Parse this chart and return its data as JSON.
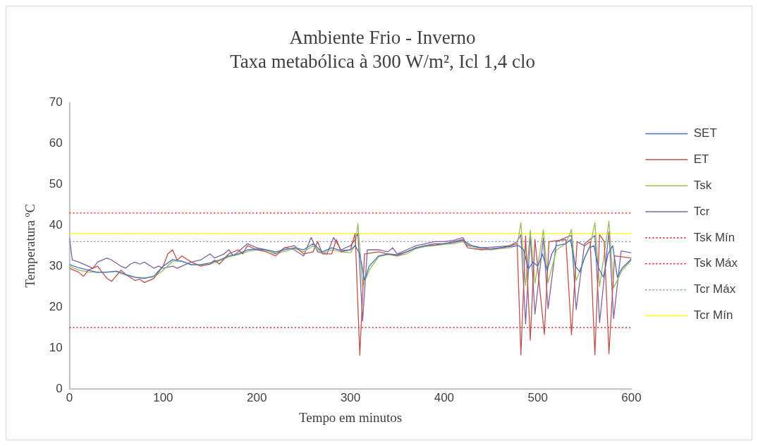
{
  "chart_data": {
    "type": "line",
    "title": "Ambiente Frio - Inverno",
    "subtitle": "Taxa metabólica à 300 W/m², Icl 1,4 clo",
    "xlabel": "Tempo em minutos",
    "ylabel": "Temperatura ºC",
    "xlim": [
      0,
      600
    ],
    "xticks": [
      0,
      100,
      200,
      300,
      400,
      500,
      600
    ],
    "ylim": [
      0,
      70
    ],
    "yticks": [
      0,
      10,
      20,
      30,
      40,
      50,
      60,
      70
    ],
    "legend": "right",
    "marker": "none",
    "series": [
      {
        "name": "SET",
        "color": "#4472c4",
        "line_style": "solid",
        "x": [
          0,
          10,
          20,
          30,
          40,
          50,
          60,
          70,
          80,
          90,
          100,
          110,
          120,
          130,
          140,
          150,
          160,
          170,
          180,
          190,
          200,
          210,
          220,
          230,
          240,
          250,
          260,
          270,
          280,
          290,
          300,
          305,
          310,
          315,
          320,
          330,
          340,
          350,
          360,
          370,
          380,
          390,
          400,
          410,
          420,
          430,
          440,
          450,
          460,
          470,
          480,
          485,
          490,
          495,
          500,
          505,
          510,
          515,
          520,
          530,
          535,
          540,
          545,
          550,
          555,
          560,
          565,
          570,
          575,
          580,
          585,
          590,
          600
        ],
        "values": [
          30.4,
          29.6,
          29,
          28.5,
          28.5,
          28.8,
          28,
          27.3,
          27,
          27.6,
          30,
          31.6,
          31.2,
          30.3,
          30.4,
          30.8,
          31.5,
          32.5,
          33,
          34,
          34.2,
          34,
          33.5,
          34,
          34.5,
          34,
          35.5,
          33.5,
          34.5,
          33.8,
          34,
          35,
          33,
          26.5,
          30,
          32.5,
          33,
          32.8,
          33.5,
          34.5,
          35,
          35.2,
          35.5,
          35.8,
          36.3,
          35,
          34.5,
          34.2,
          34.5,
          34.8,
          35,
          34,
          29.3,
          31,
          30,
          33,
          29,
          33,
          35,
          35.5,
          36.5,
          30,
          28.6,
          32,
          34.5,
          35,
          29.5,
          27.3,
          33,
          35,
          27.3,
          29.5,
          31.8
        ]
      },
      {
        "name": "ET",
        "color": "#c0504d",
        "line_style": "solid",
        "x": [
          0,
          10,
          15,
          20,
          30,
          40,
          45,
          55,
          60,
          70,
          75,
          80,
          90,
          100,
          105,
          110,
          115,
          120,
          130,
          140,
          150,
          155,
          160,
          170,
          180,
          185,
          190,
          200,
          210,
          220,
          230,
          240,
          250,
          260,
          265,
          270,
          280,
          285,
          290,
          300,
          305,
          310,
          315,
          330,
          340,
          350,
          360,
          370,
          380,
          390,
          400,
          410,
          420,
          425,
          440,
          460,
          470,
          478,
          482,
          487,
          492,
          497,
          507,
          512,
          530,
          536,
          542,
          550,
          556,
          561,
          566,
          571,
          576,
          582,
          600
        ],
        "values": [
          29.5,
          28.5,
          27.5,
          29,
          30,
          27,
          26.3,
          29,
          28,
          26.5,
          26.8,
          26,
          27,
          30,
          33,
          34,
          31.5,
          32.5,
          31,
          30,
          30.5,
          31.5,
          30.5,
          33,
          34,
          33,
          35,
          34,
          33.5,
          32.5,
          34.5,
          35,
          33,
          33.5,
          36,
          33,
          33,
          36.5,
          33.5,
          34,
          38,
          8.2,
          33,
          33.5,
          33,
          32.5,
          33.5,
          34.5,
          35,
          35.5,
          35.5,
          36,
          36.5,
          34.5,
          34,
          34.5,
          35,
          35.5,
          8.3,
          37.4,
          11.9,
          36.5,
          13.3,
          36,
          36.5,
          13.2,
          36,
          35,
          36,
          8.3,
          37.7,
          36,
          8.6,
          32.5,
          32
        ]
      },
      {
        "name": "Tsk",
        "color": "#9bbb59",
        "line_style": "solid",
        "x": [
          0,
          10,
          20,
          30,
          40,
          50,
          60,
          70,
          80,
          90,
          100,
          110,
          120,
          130,
          140,
          150,
          160,
          170,
          180,
          190,
          200,
          210,
          220,
          230,
          240,
          250,
          260,
          270,
          280,
          290,
          300,
          305,
          308,
          313,
          320,
          330,
          340,
          350,
          360,
          370,
          380,
          390,
          400,
          410,
          420,
          430,
          440,
          450,
          460,
          470,
          478,
          482,
          487,
          492,
          497,
          506,
          511,
          520,
          530,
          536,
          541,
          550,
          556,
          561,
          566,
          576,
          581,
          590,
          600
        ],
        "values": [
          30,
          29,
          28.6,
          28.5,
          28.6,
          28.7,
          27.8,
          27.3,
          27.2,
          27.3,
          29,
          31.2,
          31.2,
          30.4,
          30.3,
          30.5,
          31.3,
          32.3,
          32.8,
          33.6,
          34,
          33.8,
          33.2,
          33.6,
          34.3,
          33.5,
          35,
          33.2,
          34,
          33.5,
          33.3,
          35,
          40.4,
          25,
          29,
          32.3,
          32.8,
          32.5,
          33,
          34.3,
          34.8,
          35,
          35.3,
          35.5,
          36,
          34.8,
          34.2,
          34,
          34.3,
          34.5,
          35,
          40.6,
          25.2,
          38.8,
          25.8,
          38.9,
          26,
          34,
          35.5,
          39,
          26.5,
          32,
          35,
          40.6,
          25,
          41,
          24.7,
          29,
          31.5
        ]
      },
      {
        "name": "Tcr",
        "color": "#8064a2",
        "line_style": "solid",
        "x": [
          0,
          3,
          10,
          20,
          25,
          30,
          40,
          45,
          55,
          60,
          65,
          70,
          75,
          80,
          90,
          95,
          100,
          110,
          115,
          120,
          130,
          140,
          150,
          155,
          165,
          170,
          175,
          180,
          190,
          200,
          210,
          220,
          230,
          240,
          250,
          258,
          265,
          275,
          282,
          290,
          300,
          305,
          308,
          313,
          318,
          330,
          340,
          345,
          350,
          360,
          370,
          380,
          390,
          400,
          410,
          420,
          425,
          440,
          460,
          470,
          478,
          482,
          487,
          492,
          497,
          506,
          511,
          520,
          530,
          536,
          541,
          550,
          561,
          566,
          576,
          581,
          589,
          600
        ],
        "values": [
          37,
          31.5,
          31,
          30,
          29.5,
          31,
          32,
          31.5,
          30,
          29.5,
          30.5,
          31,
          30.5,
          31,
          29.5,
          30,
          29.5,
          30,
          29.5,
          30,
          31,
          31.5,
          33,
          32,
          33,
          34,
          32.5,
          33.5,
          35.5,
          34.5,
          34,
          33,
          34.5,
          34,
          32.5,
          37,
          33.5,
          33,
          37,
          34,
          35,
          36.5,
          38,
          16.6,
          34,
          34,
          33.5,
          34.5,
          33,
          34,
          35,
          35.5,
          36,
          36,
          36.3,
          37,
          35,
          34.5,
          34.8,
          35,
          36,
          37.7,
          15.9,
          37.7,
          18.3,
          36.9,
          19.6,
          36,
          37,
          37.5,
          19.4,
          35.5,
          37.5,
          16.2,
          38.4,
          17.2,
          33.7,
          33.3
        ]
      },
      {
        "name": "Tsk Mín",
        "color": "#c00000",
        "line_style": "dotted",
        "x": [
          0,
          600
        ],
        "values": [
          15,
          15
        ]
      },
      {
        "name": "Tsk Máx",
        "color": "#ff0000",
        "line_style": "dotted",
        "x": [
          0,
          600
        ],
        "values": [
          43,
          43
        ]
      },
      {
        "name": "Tcr Máx",
        "color": "#6f8fd0",
        "line_style": "dotted",
        "x": [
          0,
          600
        ],
        "values": [
          36,
          36
        ]
      },
      {
        "name": "Tcr Mín",
        "color": "#ffff00",
        "line_style": "solid",
        "x": [
          0,
          600
        ],
        "values": [
          38,
          38
        ]
      }
    ]
  }
}
